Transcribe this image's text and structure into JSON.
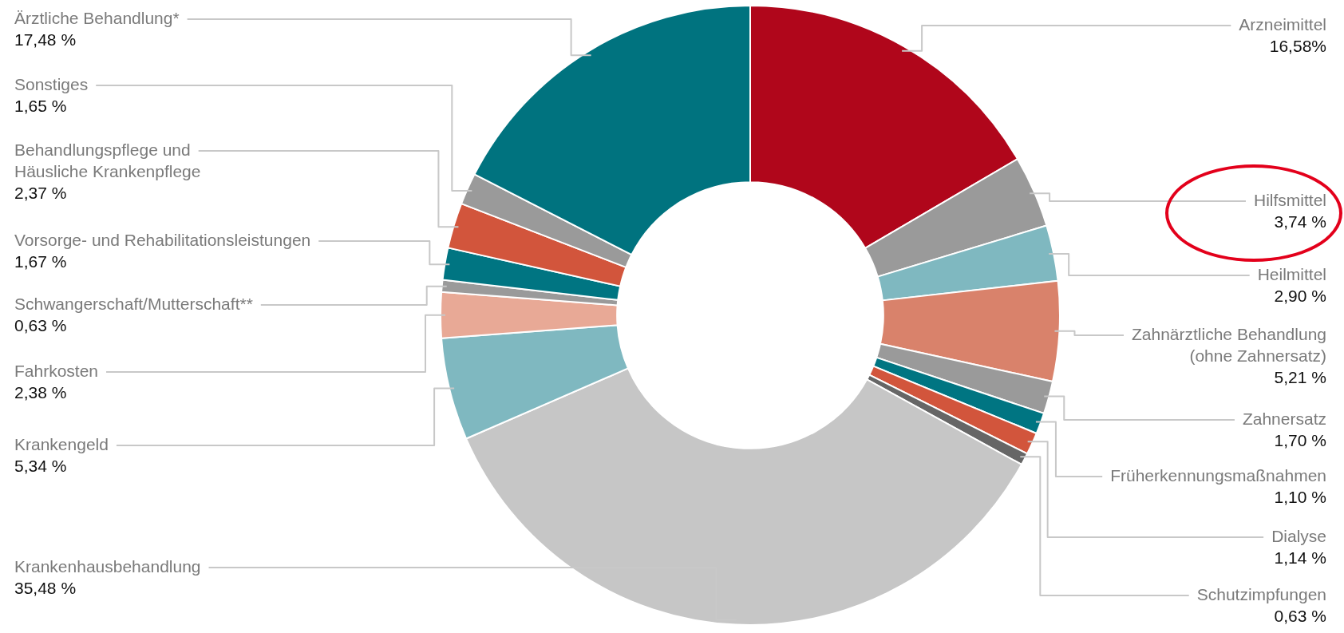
{
  "chart_data": {
    "type": "donut",
    "categories": [
      "Arzneimittel",
      "Hilfsmittel",
      "Heilmittel",
      "Zahnärztliche Behandlung (ohne Zahnersatz)",
      "Zahnersatz",
      "Früherkennungsmaßnahmen",
      "Dialyse",
      "Schutzimpfungen",
      "Krankenhausbehandlung",
      "Krankengeld",
      "Fahrkosten",
      "Schwangerschaft/Mutterschaft**",
      "Vorsorge- und Rehabilitationsleistungen",
      "Behandlungspflege und Häusliche Krankenpflege",
      "Sonstiges",
      "Ärztliche Behandlung*"
    ],
    "values": [
      16.58,
      3.74,
      2.9,
      5.21,
      1.7,
      1.1,
      1.14,
      0.63,
      35.48,
      5.34,
      2.38,
      0.63,
      1.67,
      2.37,
      1.65,
      17.48
    ],
    "colors": [
      "#b0061b",
      "#9a9a9a",
      "#7fb8c0",
      "#d9826b",
      "#9a9a9a",
      "#007582",
      "#d2553c",
      "#666666",
      "#c6c6c6",
      "#7fb8c0",
      "#e8a996",
      "#9a9a9a",
      "#007582",
      "#d2553c",
      "#9a9a9a",
      "#00737f"
    ],
    "value_labels": [
      "16,58%",
      "3,74 %",
      "2,90 %",
      "5,21 %",
      "1,70 %",
      "1,10 %",
      "1,14 %",
      "0,63 %",
      "35,48 %",
      "5,34 %",
      "2,38 %",
      "0,63 %",
      "1,67 %",
      "2,37 %",
      "1,65 %",
      "17,48 %"
    ]
  }
}
